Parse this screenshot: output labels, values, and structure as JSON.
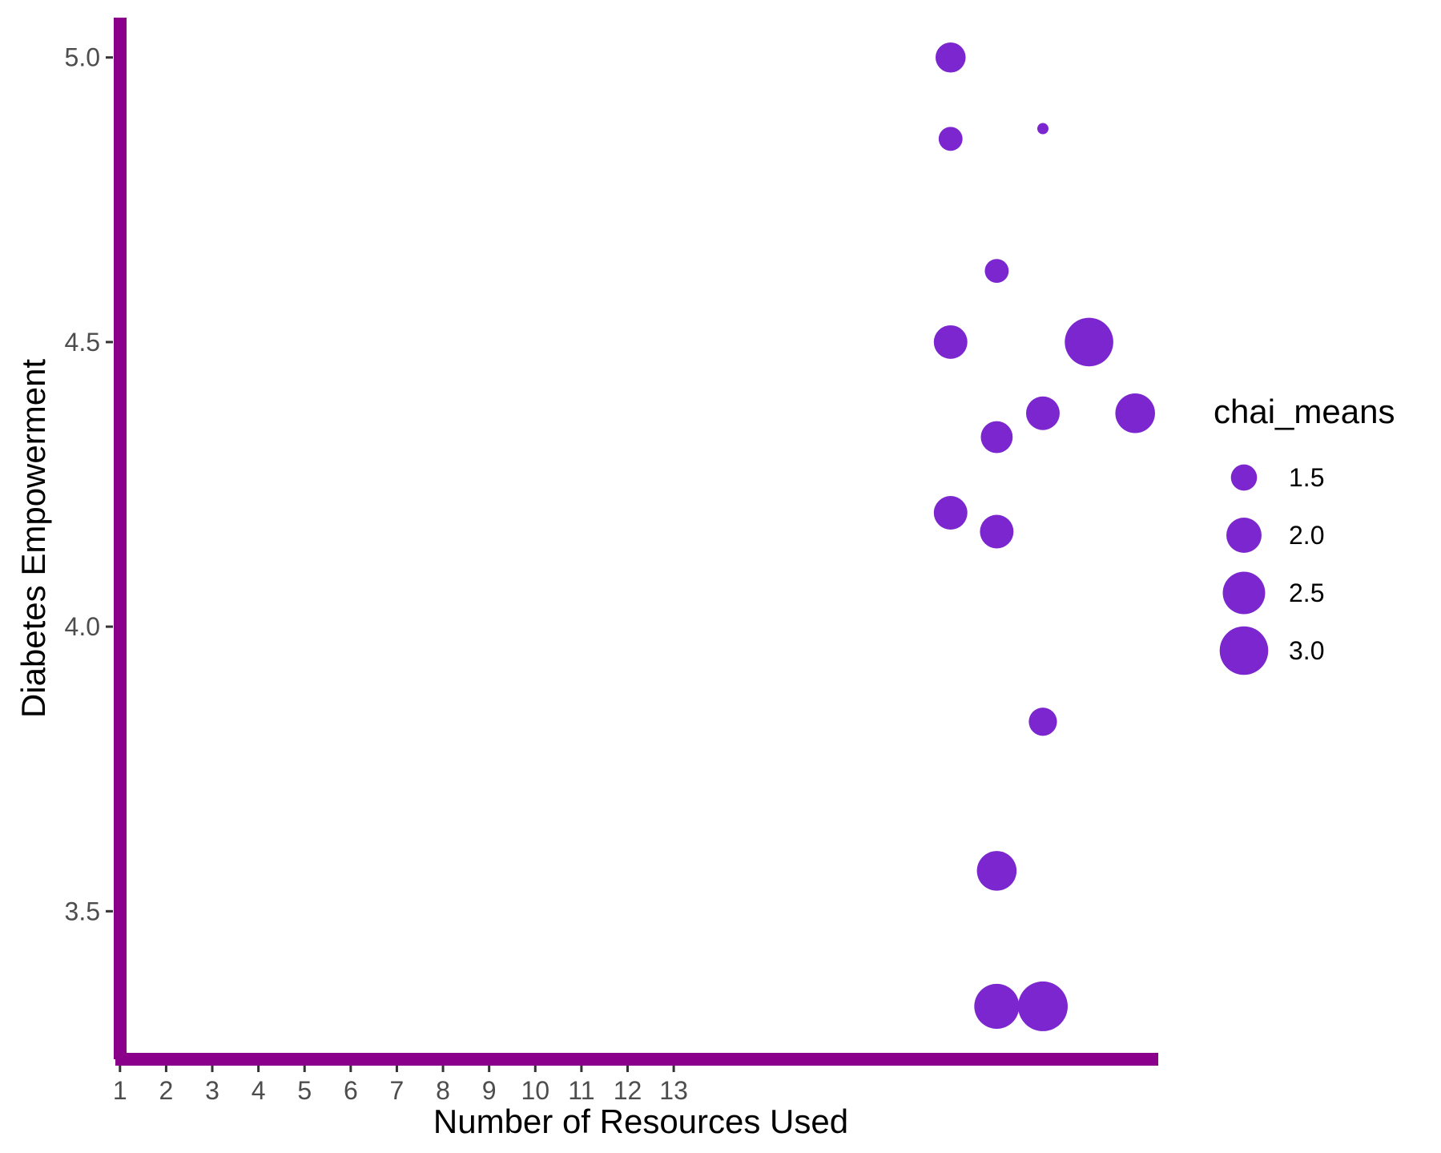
{
  "chart_data": {
    "type": "scatter",
    "title": "",
    "xlabel": "Number of Resources Used",
    "ylabel": "Diabetes Empowerment",
    "x_ticks": [
      "1",
      "2",
      "3",
      "4",
      "5",
      "6",
      "7",
      "8",
      "9",
      "10",
      "11",
      "12",
      "13"
    ],
    "xlim": [
      0.83,
      23.5
    ],
    "y_ticks": [
      "3.5",
      "4.0",
      "4.5",
      "5.0"
    ],
    "ylim": [
      3.24,
      5.07
    ],
    "grid": false,
    "legend": {
      "title": "chai_means",
      "placement": "right",
      "entries": [
        {
          "label": "1.5",
          "value": 1.5
        },
        {
          "label": "2.0",
          "value": 2.0
        },
        {
          "label": "2.5",
          "value": 2.5
        },
        {
          "label": "3.0",
          "value": 3.0
        }
      ]
    },
    "colors": {
      "points": "#7b26cf",
      "axis_lines": "#8b008b",
      "tick_marks": "#333333"
    },
    "size_scale": {
      "value_range": [
        1.0,
        3.1
      ]
    },
    "points": [
      {
        "x": 19,
        "y": 5.0,
        "chai_means": 1.7
      },
      {
        "x": 19,
        "y": 4.857,
        "chai_means": 1.4
      },
      {
        "x": 21,
        "y": 4.875,
        "chai_means": 1.0
      },
      {
        "x": 20,
        "y": 4.625,
        "chai_means": 1.4
      },
      {
        "x": 19,
        "y": 4.5,
        "chai_means": 1.9
      },
      {
        "x": 22,
        "y": 4.5,
        "chai_means": 3.0
      },
      {
        "x": 21,
        "y": 4.375,
        "chai_means": 1.9
      },
      {
        "x": 23,
        "y": 4.375,
        "chai_means": 2.3
      },
      {
        "x": 20,
        "y": 4.333,
        "chai_means": 1.8
      },
      {
        "x": 19,
        "y": 4.2,
        "chai_means": 1.9
      },
      {
        "x": 20,
        "y": 4.167,
        "chai_means": 1.9
      },
      {
        "x": 21,
        "y": 3.833,
        "chai_means": 1.6
      },
      {
        "x": 20,
        "y": 3.571,
        "chai_means": 2.3
      },
      {
        "x": 20,
        "y": 3.333,
        "chai_means": 2.7
      },
      {
        "x": 21,
        "y": 3.333,
        "chai_means": 3.1
      }
    ]
  }
}
